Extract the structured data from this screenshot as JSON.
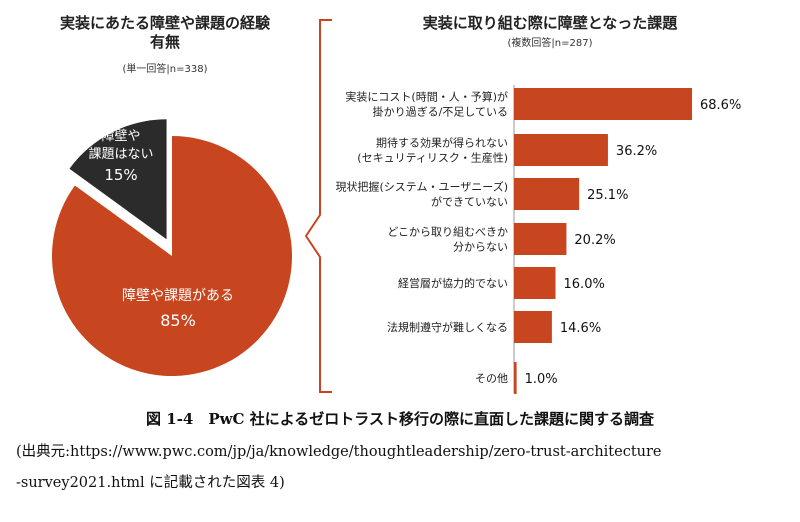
{
  "left_title_1": "実装にあたる障壁や課題の経験",
  "left_title_2": "有無",
  "left_note": "(単一回答|n=338)",
  "right_title": "実装に取り組む際に障壁となった課題",
  "right_note": "(複数回答|n=287)",
  "caption_title": "図 1-4　PwC 社によるゼロトラスト移行の際に直面した課題に関する調査",
  "caption_source_1": "(出典元:https://www.pwc.com/jp/ja/knowledge/thoughtleadership/zero-trust-architecture",
  "caption_source_2": "-survey2021.html に記載された図表 4)",
  "colors": {
    "accent": "#c8461f",
    "dark": "#2b2b2b",
    "bracket": "#c8461f"
  },
  "chart_data": [
    {
      "type": "pie",
      "title": "実装にあたる障壁や課題の経験有無",
      "subtitle": "(単一回答|n=338)",
      "slices": [
        {
          "label_lines": [
            "障壁や課題がある"
          ],
          "value": 85,
          "value_label": "85%",
          "color": "#c8461f"
        },
        {
          "label_lines": [
            "障壁や",
            "課題はない"
          ],
          "value": 15,
          "value_label": "15%",
          "color": "#2b2b2b"
        }
      ]
    },
    {
      "type": "bar",
      "orientation": "horizontal",
      "title": "実装に取り組む際に障壁となった課題",
      "subtitle": "(複数回答|n=287)",
      "categories": [
        [
          "実装にコスト(時間・人・予算)が",
          "掛かり過ぎる/不足している"
        ],
        [
          "期待する効果が得られない",
          "(セキュリティリスク・生産性)"
        ],
        [
          "現状把握(システム・ユーザニーズ)",
          "ができていない"
        ],
        [
          "どこから取り組むべきか",
          "分からない"
        ],
        [
          "経営層が協力的でない"
        ],
        [
          "法規制遵守が難しくなる"
        ],
        [
          "その他"
        ]
      ],
      "values": [
        68.6,
        36.2,
        25.1,
        20.2,
        16.0,
        14.6,
        1.0
      ],
      "value_labels": [
        "68.6%",
        "36.2%",
        "25.1%",
        "20.2%",
        "16.0%",
        "14.6%",
        "1.0%"
      ],
      "color": "#c8461f"
    }
  ]
}
